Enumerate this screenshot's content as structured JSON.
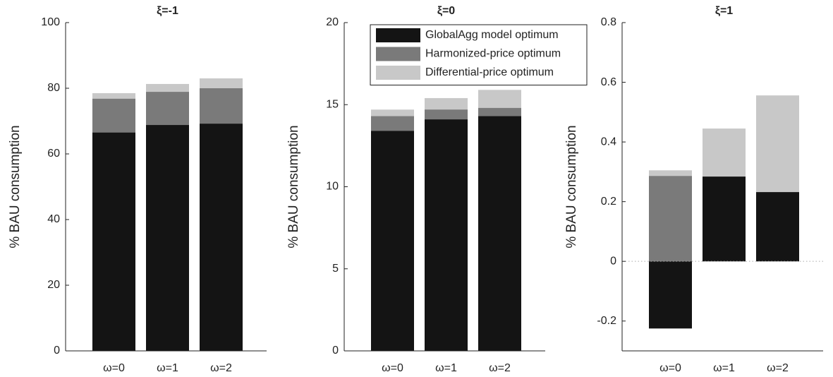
{
  "chart_data": [
    {
      "type": "bar",
      "barmode": "overlay",
      "title": "ξ=-1",
      "ylabel": "% BAU consumption",
      "categories": [
        "ω=0",
        "ω=1",
        "ω=2"
      ],
      "series": [
        {
          "color": "#141414",
          "values": [
            66.5,
            68.8,
            69.2
          ]
        },
        {
          "color": "#7a7a7a",
          "values": [
            76.8,
            78.9,
            80.0
          ]
        },
        {
          "color": "#c8c8c8",
          "values": [
            78.5,
            81.3,
            83.0
          ]
        }
      ],
      "ylim": [
        0,
        100
      ],
      "yticks": [
        0,
        20,
        40,
        60,
        80,
        100
      ]
    },
    {
      "type": "bar",
      "barmode": "overlay",
      "title": "ξ=0",
      "ylabel": "% BAU consumption",
      "categories": [
        "ω=0",
        "ω=1",
        "ω=2"
      ],
      "series": [
        {
          "name": "GlobalAgg model optimum",
          "color": "#141414",
          "values": [
            13.4,
            14.1,
            14.3
          ]
        },
        {
          "name": "Harmonized-price optimum",
          "color": "#7a7a7a",
          "values": [
            14.3,
            14.7,
            14.8
          ]
        },
        {
          "name": "Differential-price optimum",
          "color": "#c8c8c8",
          "values": [
            14.7,
            15.4,
            15.9
          ]
        }
      ],
      "legend": "upper right",
      "ylim": [
        0,
        20
      ],
      "yticks": [
        0,
        5,
        10,
        15,
        20
      ]
    },
    {
      "type": "bar",
      "barmode": "overlay",
      "title": "ξ=1",
      "ylabel": "% BAU consumption",
      "categories": [
        "ω=0",
        "ω=1",
        "ω=2"
      ],
      "series": [
        {
          "color": "#141414",
          "values": [
            -0.225,
            0.284,
            0.232
          ]
        },
        {
          "color": "#7a7a7a",
          "values": [
            0.286,
            0.28,
            0.23
          ]
        },
        {
          "color": "#c8c8c8",
          "values": [
            0.305,
            0.445,
            0.556
          ]
        }
      ],
      "ylim": [
        -0.3,
        0.8
      ],
      "yticks": [
        -0.2,
        0,
        0.2,
        0.4,
        0.6,
        0.8
      ]
    }
  ]
}
